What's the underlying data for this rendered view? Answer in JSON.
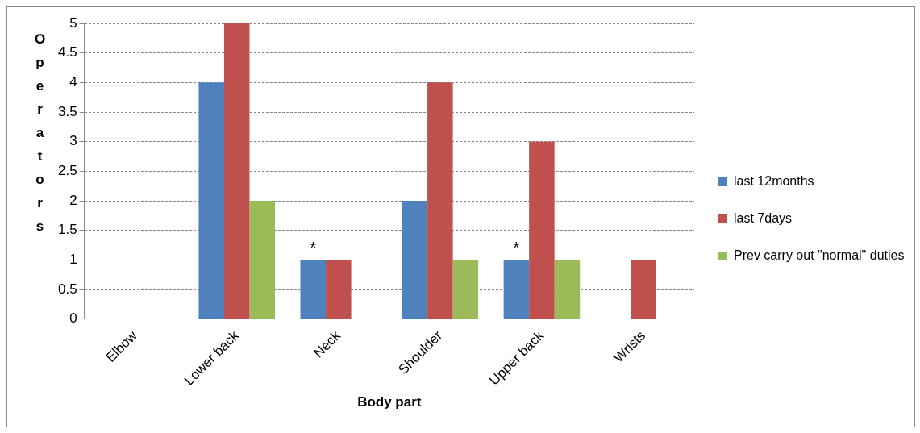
{
  "chart_data": {
    "type": "bar",
    "xlabel": "Body part",
    "ylabel": "Operators",
    "categories": [
      "Elbow",
      "Lower back",
      "Neck",
      "Shoulder",
      "Upper back",
      "Wrists"
    ],
    "series": [
      {
        "name": "last 12months",
        "color": "#4f81bd",
        "values": [
          0,
          4,
          1,
          2,
          1,
          0
        ]
      },
      {
        "name": "last 7days",
        "color": "#c0504d",
        "values": [
          0,
          5,
          1,
          4,
          3,
          1
        ]
      },
      {
        "name": "Prev carry out \"normal\" duties",
        "color": "#9bbb59",
        "values": [
          0,
          2,
          0,
          1,
          1,
          0
        ]
      }
    ],
    "ylim": [
      0,
      5
    ],
    "yticks": [
      0,
      0.5,
      1,
      1.5,
      2,
      2.5,
      3,
      3.5,
      4,
      4.5,
      5
    ],
    "grid": "y",
    "legend": "right",
    "annotations": [
      {
        "text": "*",
        "x": "Neck",
        "y": 1
      },
      {
        "text": "*",
        "x": "Upper back",
        "y": 1
      }
    ]
  }
}
